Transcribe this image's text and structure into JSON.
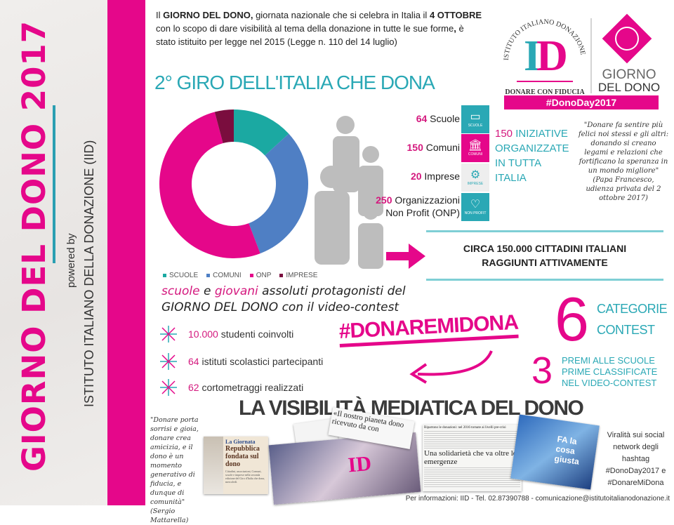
{
  "side": {
    "title": "GIORNO DEL DONO 2017",
    "powered_by": "powered by",
    "institute": "ISTITUTO ITALIANO DELLA DONAZIONE (IID)"
  },
  "intro": {
    "p1": "Il ",
    "b1": "GIORNO DEL DONO,",
    "p2": " giornata nazionale che si celebra in Italia il ",
    "b2": "4 OTTOBRE",
    "p3": " con lo scopo di dare visibilità al tema della donazione in tutte le sue forme",
    "b3": ",",
    "p4": " è stato istituito per legge nel 2015 (Legge n. 110 del 14 luglio)"
  },
  "logo": {
    "arc_text": "ISTITUTO ITALIANO DONAZIONE",
    "letters": "ID",
    "tagline": "DONARE CON FIDUCIA",
    "giorno": "GIORNO",
    "del_dono": "DEL DONO",
    "hashtag": "#DonoDay2017"
  },
  "headline": "2° GIRO DELL'ITALIA CHE DONA",
  "chart_data": {
    "type": "pie",
    "donut": true,
    "categories": [
      "SCUOLE",
      "COMUNI",
      "ONP",
      "IMPRESE"
    ],
    "values": [
      64,
      150,
      250,
      20
    ],
    "colors": [
      "#1ba9a2",
      "#4f7fc4",
      "#e5078a",
      "#7a0d3e"
    ],
    "legend": "bottom"
  },
  "counts": [
    {
      "num": "64",
      "label": " Scuole",
      "icon": "book-icon",
      "icon_label": "SCUOLE",
      "color": "#2aa8b5"
    },
    {
      "num": "150",
      "label": " Comuni",
      "icon": "town-hall-icon",
      "icon_label": "COMUNI",
      "color": "#e5078a"
    },
    {
      "num": "20",
      "label": " Imprese",
      "icon": "gears-icon",
      "icon_label": "IMPRESE",
      "color": "#eeeeee"
    },
    {
      "num": "250",
      "label": " Organizzazioni",
      "label2": "Non Profit (ONP)",
      "icon": "heart-icon",
      "icon_label": "NON PROFIT",
      "color": "#2aa8b5"
    }
  ],
  "initiatives": {
    "num": "150",
    "l1": " INIZIATIVE",
    "l2": "ORGANIZZATE",
    "l3": "IN TUTTA ITALIA"
  },
  "pope_quote": {
    "text": "\"Donare fa sentire più felici noi stessi e gli altri: donando si creano legami e relazioni che fortificano la speranza in un mondo migliore\"",
    "source": "(Papa Francesco, udienza privata del 2 ottobre 2017)"
  },
  "citizens": {
    "l1": "CIRCA 150.000 CITTADINI ITALIANI",
    "l2": "RAGGIUNTI ATTIVAMENTE"
  },
  "protagonists": {
    "w1": "scuole",
    "w2": " e ",
    "w3": "giovani",
    "w4": " assoluti protagonisti del",
    "l2a": "GIORNO DEL DONO",
    "l2b": " con il video-contest"
  },
  "bullets": [
    {
      "num": "10.000",
      "text": " studenti coinvolti"
    },
    {
      "num": "64",
      "text": " istituti scolastici partecipanti"
    },
    {
      "num": "62",
      "text": " cortometraggi realizzati"
    }
  ],
  "contest_hashtag": "#DONAREMIDONA",
  "categories": {
    "num": "6",
    "l1": "CATEGORIE",
    "l2": "CONTEST"
  },
  "prizes": {
    "num": "3",
    "l1": "PREMI ALLE SCUOLE PRIME",
    "l2": "CLASSIFICATE NEL VIDEO-CONTEST"
  },
  "media_title": "LA VISIBILITÀ MEDIATICA DEL DONO",
  "mattarella_quote": {
    "text": "\"Donare porta sorrisi e gioia, donare crea amicizia, e il dono è un momento generativo di fiducia, e dunque di comunità\"",
    "source": "(Sergio Mattarella)"
  },
  "clippings": {
    "c1_head": "La Giornata",
    "c1_title": "Repubblica fondata sul dono",
    "c1_body": "Cittadini, associazioni, Comuni, scuole e imprese nella seconda edizione del Giro d'Italia che dona, mercoledì.",
    "c2_title": "«Il nostro pianeta dono ricevuto da con",
    "c3_head": "Ripartono le donazioni: nel 2016 tornate ai livelli pre-crisi",
    "c3_title": "Una solidarietà che va oltre le emergenze",
    "c4_text": "FA la cosa giusta"
  },
  "virality": {
    "l1": "Viralità sui social network degli hashtag",
    "h1": "#DonoDay2017 e",
    "h2": "#DonareMiDona"
  },
  "footer": "Per informazioni: IID - Tel. 02.87390788 - comunicazione@istitutoitalianodonazione.it",
  "colors": {
    "pink": "#e5078a",
    "teal": "#2aa8b5",
    "dark": "#3b3b3b"
  }
}
